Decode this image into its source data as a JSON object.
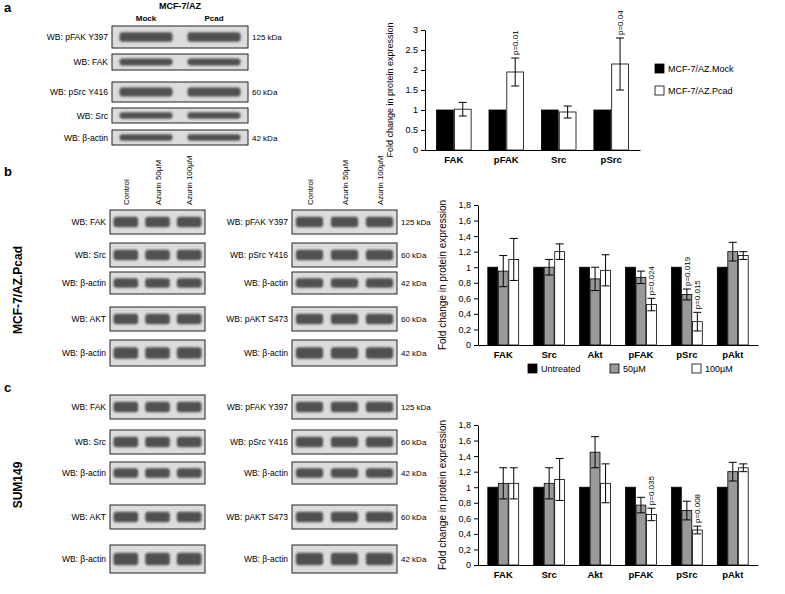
{
  "chart_data": [
    {
      "type": "bar",
      "categories": [
        "FAK",
        "pFAK",
        "Src",
        "pSrc"
      ],
      "ylabel": "Fold change in protein expression",
      "ylim": [
        0,
        3
      ],
      "yticks": [
        0,
        0.5,
        1,
        1.5,
        2,
        2.5,
        3
      ],
      "legend": "right",
      "series": [
        {
          "name": "MCF-7/AZ.Mock",
          "color": "#000000",
          "values": [
            1,
            1,
            1,
            1
          ]
        },
        {
          "name": "MCF-7/AZ.Pcad",
          "color": "#ffffff",
          "values": [
            1.02,
            1.95,
            0.95,
            2.15
          ],
          "errors": [
            0.17,
            0.35,
            0.15,
            0.65
          ],
          "annotations": [
            null,
            "p=0.01",
            null,
            "p=0.04"
          ]
        }
      ]
    },
    {
      "type": "bar",
      "categories": [
        "FAK",
        "Src",
        "Akt",
        "pFAK",
        "pSrc",
        "pAkt"
      ],
      "ylabel": "Fold change in protein expression",
      "ylim": [
        0,
        1.8
      ],
      "yticks": [
        0,
        {
          "value": 0.2,
          "label": "0,2"
        },
        {
          "value": 0.4,
          "label": "0,4"
        },
        {
          "value": 0.6,
          "label": "0,6"
        },
        {
          "value": 0.8,
          "label": "0,8"
        },
        1,
        {
          "value": 1.2,
          "label": "1,2"
        },
        {
          "value": 1.4,
          "label": "1,4"
        },
        {
          "value": 1.6,
          "label": "1,6"
        },
        {
          "value": 1.8,
          "label": "1,8"
        }
      ],
      "legend": "bottom",
      "series": [
        {
          "name": "Untreated",
          "color": "#000000",
          "values": [
            1,
            1,
            1,
            1,
            1,
            1
          ]
        },
        {
          "name": "50µM",
          "color": "#999999",
          "values": [
            0.95,
            1.0,
            0.85,
            0.87,
            0.65,
            1.2
          ],
          "errors": [
            0.2,
            0.1,
            0.15,
            0.08,
            0.07,
            0.12
          ],
          "annotations": [
            null,
            null,
            null,
            null,
            "p=0.019",
            null
          ]
        },
        {
          "name": "100µM",
          "color": "#ffffff",
          "values": [
            1.1,
            1.2,
            0.96,
            0.52,
            0.3,
            1.15
          ],
          "errors": [
            0.27,
            0.1,
            0.2,
            0.08,
            0.12,
            0.05
          ],
          "annotations": [
            null,
            null,
            null,
            "p=0.024",
            "p=0.015",
            null
          ]
        }
      ]
    },
    {
      "type": "bar",
      "categories": [
        "FAK",
        "Src",
        "Akt",
        "pFAK",
        "pSrc",
        "pAkt"
      ],
      "ylabel": "Fold change in protein expression",
      "ylim": [
        0,
        1.8
      ],
      "yticks": [
        0,
        {
          "value": 0.2,
          "label": "0,2"
        },
        {
          "value": 0.4,
          "label": "0,4"
        },
        {
          "value": 0.6,
          "label": "0,6"
        },
        {
          "value": 0.8,
          "label": "0,8"
        },
        1,
        {
          "value": 1.2,
          "label": "1,2"
        },
        {
          "value": 1.4,
          "label": "1,4"
        },
        {
          "value": 1.6,
          "label": "1,6"
        },
        {
          "value": 1.8,
          "label": "1,8"
        }
      ],
      "series": [
        {
          "color": "#000000",
          "values": [
            1,
            1,
            1,
            1,
            1,
            1
          ]
        },
        {
          "color": "#999999",
          "values": [
            1.05,
            1.05,
            1.45,
            0.77,
            0.7,
            1.2
          ],
          "errors": [
            0.2,
            0.2,
            0.2,
            0.1,
            0.12,
            0.12
          ]
        },
        {
          "color": "#ffffff",
          "values": [
            1.05,
            1.1,
            1.05,
            0.65,
            0.45,
            1.25
          ],
          "errors": [
            0.2,
            0.27,
            0.25,
            0.08,
            0.05,
            0.05
          ],
          "annotations": [
            null,
            null,
            null,
            "p=0.035",
            "p=0.008",
            null
          ]
        }
      ]
    }
  ],
  "blots": [
    {
      "panel": "a",
      "title": "MCF-7/AZ",
      "lanes": [
        "Mock",
        "Pcad"
      ],
      "columns": [
        [
          {
            "label": "WB: pFAK Y397",
            "kda": "125 kDa"
          },
          {
            "label": "WB: FAK"
          },
          {
            "label": "WB: pSrc Y416",
            "kda": "60 kDa"
          },
          {
            "label": "WB: Src"
          },
          {
            "label": "WB: β-actin",
            "kda": "42 kDa"
          }
        ]
      ]
    },
    {
      "panel": "b",
      "side_label": "MCF-7/AZ.Pcad",
      "lanes": [
        "Control",
        "Azurin 50µM",
        "Azurin 100µM"
      ],
      "columns": [
        [
          {
            "label": "WB: FAK"
          },
          {
            "label": "WB: Src"
          },
          {
            "label": "WB: β-actin"
          },
          {
            "label": "WB: AKT"
          },
          {
            "label": "WB: β-actin"
          }
        ],
        [
          {
            "label": "WB: pFAK Y397",
            "kda": "125 kDa"
          },
          {
            "label": "WB: pSrc Y416",
            "kda": "60 kDa"
          },
          {
            "label": "WB: β-actin",
            "kda": "42 kDa"
          },
          {
            "label": "WB: pAKT S473",
            "kda": "60 kDa"
          },
          {
            "label": "WB: β-actin",
            "kda": "42 kDa"
          }
        ]
      ]
    },
    {
      "panel": "c",
      "side_label": "SUM149",
      "columns": [
        [
          {
            "label": "WB: FAK"
          },
          {
            "label": "WB: Src"
          },
          {
            "label": "WB: β-actin"
          },
          {
            "label": "WB: AKT"
          },
          {
            "label": "WB: β-actin"
          }
        ],
        [
          {
            "label": "WB: pFAK Y397",
            "kda": "125 kDa"
          },
          {
            "label": "WB: pSrc Y416",
            "kda": "60 kDa"
          },
          {
            "label": "WB: β-actin",
            "kda": "42 kDa"
          },
          {
            "label": "WB: pAKT S473",
            "kda": "60 kDa"
          },
          {
            "label": "WB: β-actin",
            "kda": "42 kDa"
          }
        ]
      ]
    }
  ]
}
